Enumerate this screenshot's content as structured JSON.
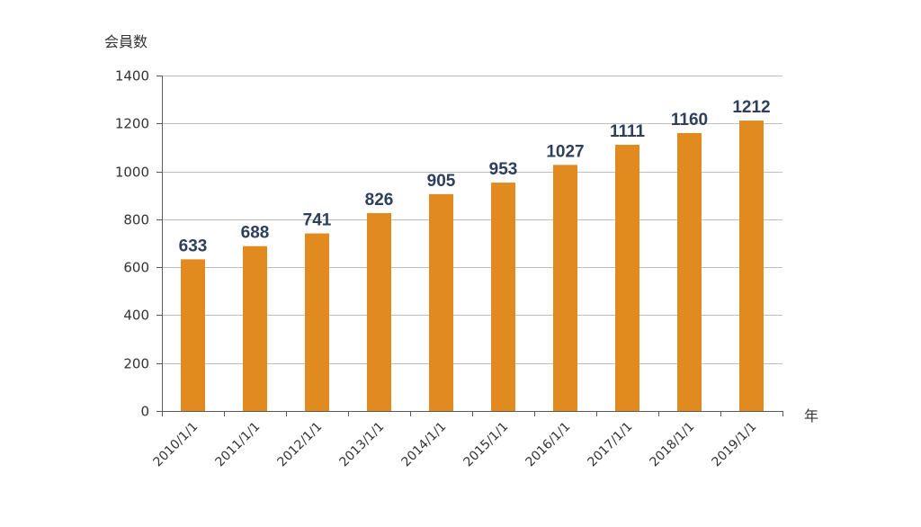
{
  "chart_data": {
    "type": "bar",
    "categories": [
      "2010/1/1",
      "2011/1/1",
      "2012/1/1",
      "2013/1/1",
      "2014/1/1",
      "2015/1/1",
      "2016/1/1",
      "2017/1/1",
      "2018/1/1",
      "2019/1/1"
    ],
    "values": [
      633,
      688,
      741,
      826,
      905,
      953,
      1027,
      1111,
      1160,
      1212
    ],
    "data_labels": [
      "633",
      "688",
      "741",
      "826",
      "905",
      "953",
      "1027",
      "1111",
      "1160",
      "1212"
    ],
    "ylabel": "会員数",
    "xlabel": "年",
    "ylim": [
      0,
      1400
    ],
    "yticks": [
      0,
      200,
      400,
      600,
      800,
      1000,
      1200,
      1400
    ],
    "ytick_labels": [
      "0",
      "200",
      "400",
      "600",
      "800",
      "1000",
      "1200",
      "1400"
    ],
    "grid": true,
    "legend": "none",
    "colors": {
      "bar": "#e08a20",
      "data_label": "#2e3f5c",
      "grid": "#bfbfbf",
      "axis": "#595959"
    }
  }
}
